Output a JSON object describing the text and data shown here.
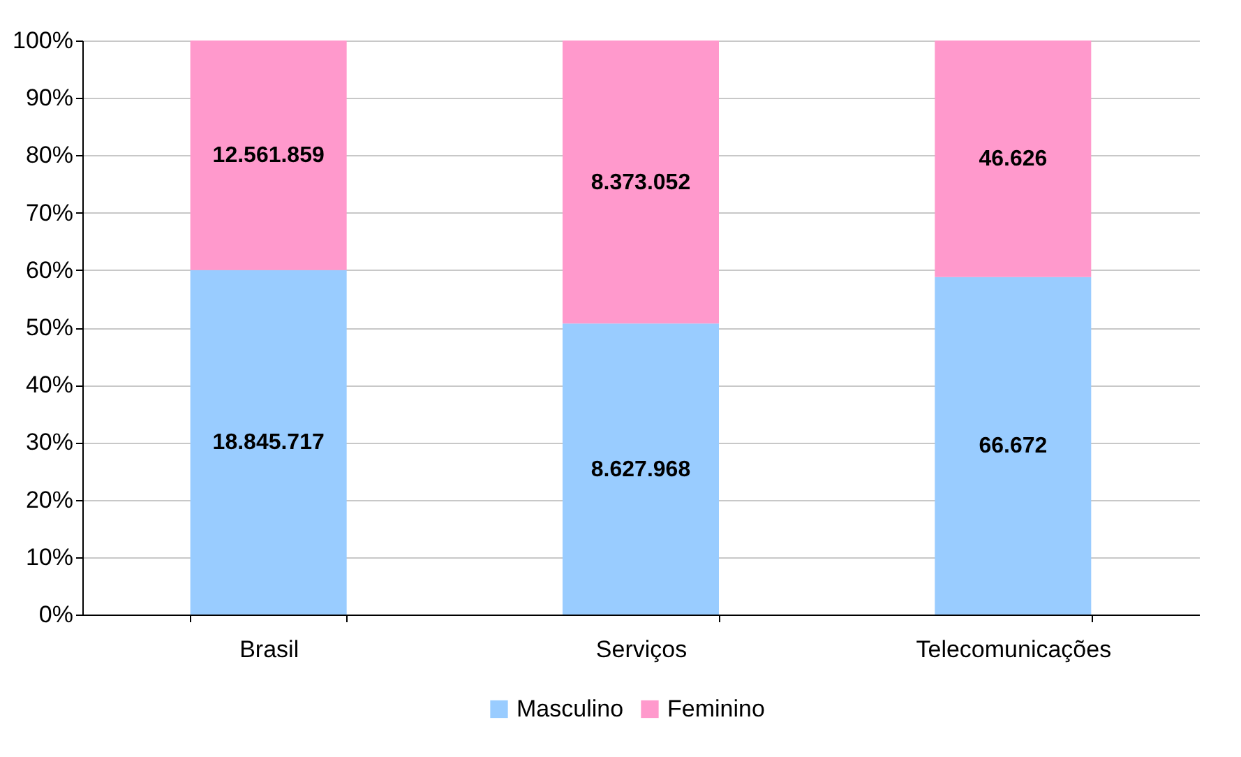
{
  "chart_data": {
    "type": "bar",
    "stacked": true,
    "categories": [
      "Brasil",
      "Serviços",
      "Telecomunicações"
    ],
    "series": [
      {
        "name": "Masculino",
        "color": "#99ccff",
        "values": [
          60.0,
          50.7,
          58.8
        ]
      },
      {
        "name": "Feminino",
        "color": "#ff99cc",
        "values": [
          40.0,
          49.3,
          41.2
        ]
      }
    ],
    "annotations": [
      "18.845.717",
      "8.627.968",
      "66.672",
      "12.561.859",
      "8.373.052",
      "46.626"
    ],
    "ylim": [
      0,
      100
    ],
    "yticks": [
      {
        "value": 0,
        "label": "0%"
      },
      {
        "value": 10,
        "label": "10%"
      },
      {
        "value": 20,
        "label": "20%"
      },
      {
        "value": 30,
        "label": "30%"
      },
      {
        "value": 40,
        "label": "40%"
      },
      {
        "value": 50,
        "label": "50%"
      },
      {
        "value": 60,
        "label": "60%"
      },
      {
        "value": 70,
        "label": "70%"
      },
      {
        "value": 80,
        "label": "80%"
      },
      {
        "value": 90,
        "label": "90%"
      },
      {
        "value": 100,
        "label": "100%"
      }
    ],
    "grid": "y",
    "legend": "bottom"
  }
}
